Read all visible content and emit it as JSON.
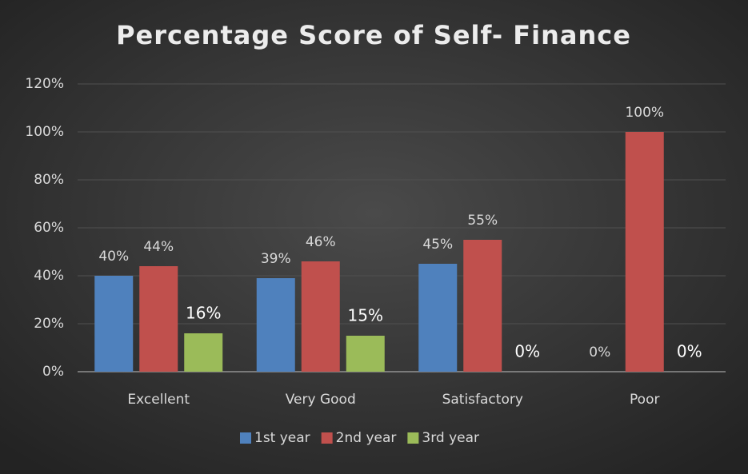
{
  "chart_data": {
    "type": "bar",
    "title": "Percentage Score of Self- Finance",
    "categories": [
      "Excellent",
      "Very Good",
      "Satisfactory",
      "Poor"
    ],
    "series": [
      {
        "name": "1st year",
        "color": "#4f81bd",
        "values": [
          40,
          39,
          45,
          0
        ],
        "value_labels": [
          "40%",
          "39%",
          "45%",
          "0%"
        ]
      },
      {
        "name": "2nd year",
        "color": "#c0504d",
        "values": [
          44,
          46,
          55,
          100
        ],
        "value_labels": [
          "44%",
          "46%",
          "55%",
          "100%"
        ]
      },
      {
        "name": "3rd year",
        "color": "#9bbb59",
        "values": [
          16,
          15,
          0,
          0
        ],
        "value_labels": [
          "16%",
          "15%",
          "0%",
          "0%"
        ]
      }
    ],
    "ylim": [
      0,
      120
    ],
    "yticks": [
      {
        "value": 0,
        "label": "0%"
      },
      {
        "value": 20,
        "label": "20%"
      },
      {
        "value": 40,
        "label": "40%"
      },
      {
        "value": 60,
        "label": "60%"
      },
      {
        "value": 80,
        "label": "80%"
      },
      {
        "value": 100,
        "label": "100%"
      },
      {
        "value": 120,
        "label": "120%"
      }
    ],
    "grid": true,
    "legend": "bottom"
  }
}
